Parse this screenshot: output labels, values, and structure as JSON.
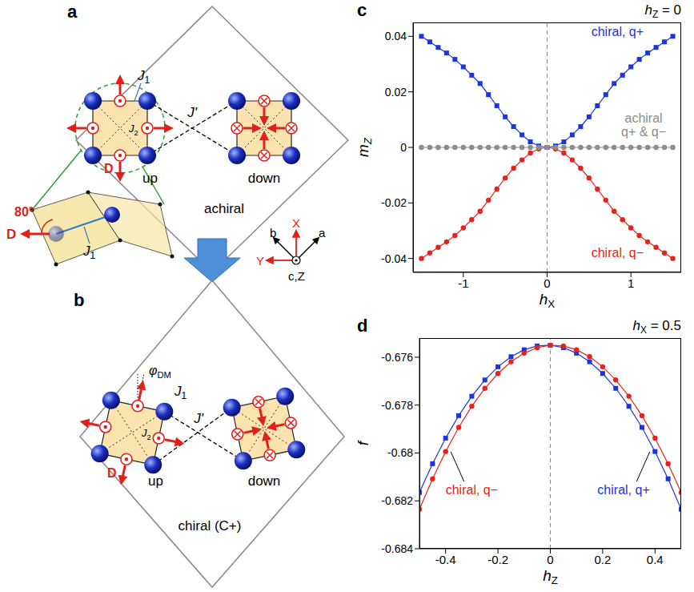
{
  "chart_data": [
    {
      "panel": "c",
      "type": "line",
      "annotation": "hZ = 0",
      "x_label": "hX",
      "y_label": "mZ",
      "x": [
        -1.5,
        -1.4,
        -1.3,
        -1.2,
        -1.1,
        -1.0,
        -0.9,
        -0.8,
        -0.7,
        -0.6,
        -0.5,
        -0.4,
        -0.3,
        -0.2,
        -0.1,
        0,
        0.1,
        0.2,
        0.3,
        0.4,
        0.5,
        0.6,
        0.7,
        0.8,
        0.9,
        1.0,
        1.1,
        1.2,
        1.3,
        1.4,
        1.5
      ],
      "xlim": [
        -1.6,
        1.6
      ],
      "xticks": [
        -1,
        0,
        1
      ],
      "ylim": [
        -0.045,
        0.045
      ],
      "yticks": [
        -0.04,
        -0.02,
        0,
        0.02,
        0.04
      ],
      "reference_line": 0,
      "series": [
        {
          "name": "chiral, q+",
          "color": "#1a35e0",
          "marker": "square",
          "values": [
            0.04,
            0.038,
            0.036,
            0.034,
            0.0317,
            0.029,
            0.026,
            0.023,
            0.019,
            0.015,
            0.011,
            0.0075,
            0.0045,
            0.002,
            0.0005,
            0,
            0.0005,
            0.002,
            0.0045,
            0.0075,
            0.011,
            0.015,
            0.019,
            0.023,
            0.026,
            0.029,
            0.0317,
            0.034,
            0.036,
            0.038,
            0.04
          ]
        },
        {
          "name": "chiral, q−",
          "color": "#e8221b",
          "marker": "circle",
          "values": [
            -0.04,
            -0.038,
            -0.036,
            -0.034,
            -0.0317,
            -0.029,
            -0.026,
            -0.023,
            -0.019,
            -0.015,
            -0.011,
            -0.0075,
            -0.0045,
            -0.002,
            -0.0005,
            0,
            -0.0005,
            -0.002,
            -0.0045,
            -0.0075,
            -0.011,
            -0.015,
            -0.019,
            -0.023,
            -0.026,
            -0.029,
            -0.0317,
            -0.034,
            -0.036,
            -0.038,
            -0.04
          ]
        },
        {
          "name": "achiral q+ & q−",
          "color": "#8c8c8c",
          "marker": "circle",
          "values": [
            0,
            0,
            0,
            0,
            0,
            0,
            0,
            0,
            0,
            0,
            0,
            0,
            0,
            0,
            0,
            0,
            0,
            0,
            0,
            0,
            0,
            0,
            0,
            0,
            0,
            0,
            0,
            0,
            0,
            0,
            0
          ]
        }
      ]
    },
    {
      "panel": "d",
      "type": "line",
      "annotation": "hX = 0.5",
      "x_label": "hZ",
      "y_label": "f",
      "x": [
        -0.5,
        -0.45,
        -0.4,
        -0.35,
        -0.3,
        -0.25,
        -0.2,
        -0.15,
        -0.1,
        -0.05,
        0,
        0.05,
        0.1,
        0.15,
        0.2,
        0.25,
        0.3,
        0.35,
        0.4,
        0.45,
        0.5
      ],
      "xlim": [
        -0.5,
        0.5
      ],
      "xticks": [
        -0.4,
        -0.2,
        0,
        0.2,
        0.4
      ],
      "ylim": [
        -0.684,
        -0.6752
      ],
      "yticks": [
        -0.684,
        -0.682,
        -0.68,
        -0.678,
        -0.676
      ],
      "reference_line": 0,
      "series": [
        {
          "name": "chiral, q+",
          "color": "#1a35e0",
          "marker": "square",
          "values": [
            -0.68165,
            -0.68045,
            -0.67938,
            -0.67844,
            -0.67763,
            -0.67695,
            -0.6764,
            -0.67598,
            -0.67569,
            -0.67553,
            -0.6755,
            -0.6756,
            -0.67583,
            -0.67619,
            -0.67668,
            -0.6773,
            -0.67805,
            -0.67893,
            -0.67994,
            -0.68108,
            -0.68235
          ]
        },
        {
          "name": "chiral, q−",
          "color": "#e8221b",
          "marker": "circle",
          "values": [
            -0.68235,
            -0.68108,
            -0.67994,
            -0.67893,
            -0.67805,
            -0.6773,
            -0.67668,
            -0.67619,
            -0.67583,
            -0.6756,
            -0.6755,
            -0.67553,
            -0.67569,
            -0.67598,
            -0.6764,
            -0.67695,
            -0.67763,
            -0.67844,
            -0.67938,
            -0.68045,
            -0.68165
          ]
        }
      ]
    }
  ],
  "diagram": {
    "a": {
      "panel": "a",
      "label": "achiral",
      "units": [
        "up",
        "down"
      ],
      "couplings": [
        "J1",
        "J2",
        "J'"
      ],
      "vector": "D",
      "inset": {
        "angle": "80°",
        "vector": "D",
        "coupling": "J1"
      }
    },
    "b": {
      "panel": "b",
      "label": "chiral (C+)",
      "units": [
        "up",
        "down"
      ],
      "couplings": [
        "J1",
        "J2",
        "J'"
      ],
      "vector": "D",
      "angle": "φDM"
    },
    "axes": {
      "crystal": [
        "b",
        "a"
      ],
      "lab": [
        "X",
        "Y"
      ],
      "vertical": "c,Z"
    }
  }
}
